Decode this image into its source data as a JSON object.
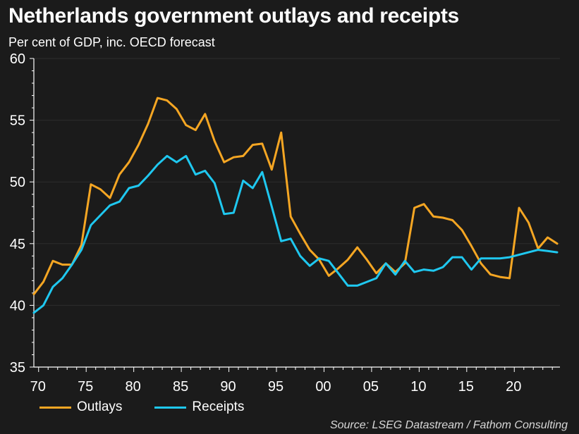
{
  "title": "Netherlands government outlays and receipts",
  "subtitle": "Per cent of GDP, inc. OECD forecast",
  "source": "Source: LSEG Datastream / Fathom Consulting",
  "colors": {
    "background": "#1b1b1b",
    "outlays": "#f5a623",
    "receipts": "#1fc8f0",
    "axis": "#ffffff",
    "grid": "#2c2c2c"
  },
  "chart_data": {
    "type": "line",
    "title": "Netherlands government outlays and receipts",
    "subtitle": "Per cent of GDP, inc. OECD forecast",
    "xlabel": "",
    "ylabel": "",
    "ylim": [
      35,
      60
    ],
    "xlim": [
      1969.5,
      2024.8
    ],
    "yticks": [
      35,
      40,
      45,
      50,
      55,
      60
    ],
    "xtick_years": [
      1970,
      1975,
      1980,
      1985,
      1990,
      1995,
      2000,
      2005,
      2010,
      2015,
      2020
    ],
    "xtick_labels": [
      "70",
      "75",
      "80",
      "85",
      "90",
      "95",
      "00",
      "05",
      "10",
      "15",
      "20"
    ],
    "grid": "horizontal faint",
    "legend": "bottom-left",
    "series": [
      {
        "name": "Outlays",
        "x": [
          1969.5,
          1970.5,
          1971.5,
          1972.5,
          1973.5,
          1974.5,
          1975.5,
          1976.5,
          1977.5,
          1978.5,
          1979.5,
          1980.5,
          1981.5,
          1982.5,
          1983.5,
          1984.5,
          1985.5,
          1986.5,
          1987.5,
          1988.5,
          1989.5,
          1990.5,
          1991.5,
          1992.5,
          1993.5,
          1994.5,
          1995.5,
          1996.5,
          1997.5,
          1998.5,
          1999.5,
          2000.5,
          2001.5,
          2002.5,
          2003.5,
          2004.5,
          2005.5,
          2006.5,
          2007.5,
          2008.5,
          2009.5,
          2010.5,
          2011.5,
          2012.5,
          2013.5,
          2014.5,
          2015.5,
          2016.5,
          2017.5,
          2018.5,
          2019.5,
          2020.5,
          2021.5,
          2022.5,
          2023.5,
          2024.5
        ],
        "values": [
          40.9,
          41.9,
          43.6,
          43.3,
          43.3,
          44.9,
          49.8,
          49.4,
          48.7,
          50.6,
          51.6,
          53.0,
          54.7,
          56.8,
          56.6,
          55.9,
          54.6,
          54.2,
          55.5,
          53.3,
          51.6,
          52.0,
          52.1,
          53.0,
          53.1,
          51.0,
          54.0,
          47.2,
          45.8,
          44.5,
          43.7,
          42.4,
          43.0,
          43.7,
          44.7,
          43.7,
          42.6,
          43.4,
          42.7,
          43.4,
          47.9,
          48.2,
          47.2,
          47.1,
          46.9,
          46.1,
          44.8,
          43.4,
          42.5,
          42.3,
          42.2,
          47.9,
          46.7,
          44.6,
          45.5,
          45.0
        ]
      },
      {
        "name": "Receipts",
        "x": [
          1969.5,
          1970.5,
          1971.5,
          1972.5,
          1973.5,
          1974.5,
          1975.5,
          1976.5,
          1977.5,
          1978.5,
          1979.5,
          1980.5,
          1981.5,
          1982.5,
          1983.5,
          1984.5,
          1985.5,
          1986.5,
          1987.5,
          1988.5,
          1989.5,
          1990.5,
          1991.5,
          1992.5,
          1993.5,
          1994.5,
          1995.5,
          1996.5,
          1997.5,
          1998.5,
          1999.5,
          2000.5,
          2001.5,
          2002.5,
          2003.5,
          2004.5,
          2005.5,
          2006.5,
          2007.5,
          2008.5,
          2009.5,
          2010.5,
          2011.5,
          2012.5,
          2013.5,
          2014.5,
          2015.5,
          2016.5,
          2017.5,
          2018.5,
          2019.5,
          2020.5,
          2021.5,
          2022.5,
          2023.5,
          2024.5
        ],
        "values": [
          39.4,
          40.0,
          41.5,
          42.2,
          43.3,
          44.5,
          46.5,
          47.3,
          48.1,
          48.4,
          49.5,
          49.7,
          50.5,
          51.4,
          52.1,
          51.6,
          52.1,
          50.6,
          50.9,
          49.9,
          47.4,
          47.5,
          50.1,
          49.5,
          50.8,
          48.0,
          45.2,
          45.4,
          44.0,
          43.2,
          43.8,
          43.6,
          42.6,
          41.6,
          41.6,
          41.9,
          42.2,
          43.4,
          42.5,
          43.6,
          42.7,
          42.9,
          42.8,
          43.1,
          43.9,
          43.9,
          42.9,
          43.8,
          43.8,
          43.8,
          43.9,
          44.1,
          44.3,
          44.5,
          44.4,
          44.3
        ]
      }
    ]
  }
}
